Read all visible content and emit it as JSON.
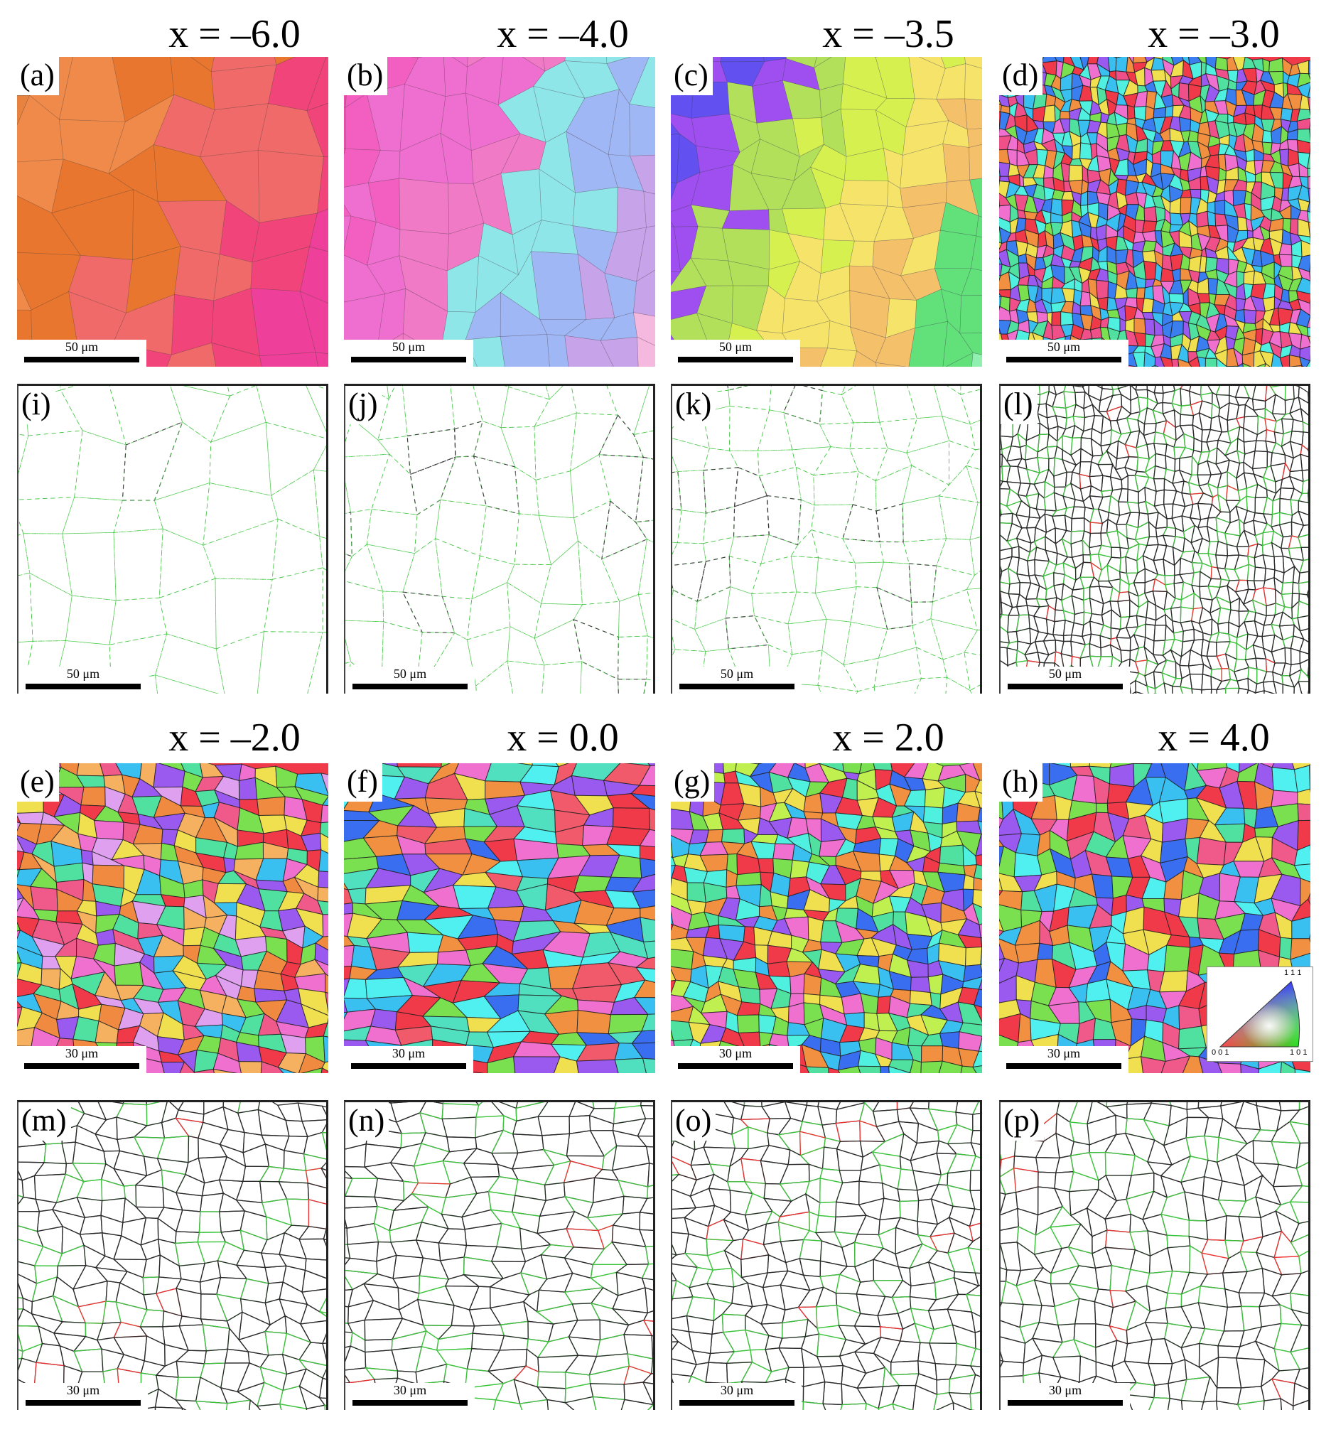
{
  "column_titles_top": [
    "x = –6.0",
    "x = –4.0",
    "x = –3.5",
    "x = –3.0"
  ],
  "column_titles_bottom": [
    "x = –2.0",
    "x = 0.0",
    "x = 2.0",
    "x = 4.0"
  ],
  "panels": [
    {
      "label": "(a)",
      "scale": "50 μm",
      "kind": "ipf",
      "palette": [
        "#e8823f",
        "#f08a4a",
        "#e9762f",
        "#f06a6a",
        "#f0447a",
        "#ee3f9a",
        "#b07ae0",
        "#9c6ff0",
        "#d8b5f0",
        "#9ef07a",
        "#f5d870"
      ]
    },
    {
      "label": "(b)",
      "scale": "50 μm",
      "kind": "ipf",
      "palette": [
        "#f04fae",
        "#f25fc0",
        "#ef6fd0",
        "#f07ac6",
        "#8ee6e8",
        "#9fb8f5",
        "#c7a3ea",
        "#f5b8de",
        "#90f0a0",
        "#e8e8f5"
      ]
    },
    {
      "label": "(c)",
      "scale": "50 μm",
      "kind": "ipf",
      "palette": [
        "#3a4ef0",
        "#6250f0",
        "#9f4ff0",
        "#b2e05a",
        "#d6f050",
        "#f5e36a",
        "#f5c06a",
        "#62e07a",
        "#8ff0b0",
        "#f0a0c8"
      ]
    },
    {
      "label": "(d)",
      "scale": "50 μm",
      "kind": "ipf",
      "palette": [
        "#f03a4a",
        "#f0508a",
        "#3ac0f0",
        "#3a7ef0",
        "#50e0a0",
        "#7ae050",
        "#f0e050",
        "#f09040",
        "#9a5af0",
        "#f070d0",
        "#50f0e0"
      ]
    },
    {
      "label": "(i)",
      "scale": "50 μm",
      "kind": "gb",
      "style": "sparse"
    },
    {
      "label": "(j)",
      "scale": "50 μm",
      "kind": "gb",
      "style": "sparse"
    },
    {
      "label": "(k)",
      "scale": "50 μm",
      "kind": "gb",
      "style": "sparse"
    },
    {
      "label": "(l)",
      "scale": "50 μm",
      "kind": "gb",
      "style": "dense"
    },
    {
      "label": "(e)",
      "scale": "30 μm",
      "kind": "ipf",
      "palette": [
        "#f03a4a",
        "#f05a8a",
        "#f08a40",
        "#f0e050",
        "#50e0a0",
        "#7ae050",
        "#3ac0f0",
        "#9a5af0",
        "#f070d0",
        "#e0a0f0",
        "#f5b060"
      ]
    },
    {
      "label": "(f)",
      "scale": "30 μm",
      "kind": "ipf",
      "palette": [
        "#f03a4a",
        "#f05a6a",
        "#3ac0f0",
        "#3a6ef0",
        "#50e0c0",
        "#7ae050",
        "#f0e050",
        "#9a5af0",
        "#f070d0",
        "#f09040",
        "#50f0f0"
      ]
    },
    {
      "label": "(g)",
      "scale": "30 μm",
      "kind": "ipf",
      "palette": [
        "#7ae050",
        "#50e0a0",
        "#3ac0f0",
        "#f03a4a",
        "#f070d0",
        "#f0e050",
        "#9a5af0",
        "#c0f050",
        "#3a6ef0",
        "#f09040",
        "#50f0e0"
      ]
    },
    {
      "label": "(h)",
      "scale": "30 μm",
      "kind": "ipf",
      "palette": [
        "#f03a4a",
        "#f05a8a",
        "#3ac0f0",
        "#3a6ef0",
        "#50e0a0",
        "#7ae050",
        "#f0e050",
        "#9a5af0",
        "#f070d0",
        "#f09040",
        "#50f0f0"
      ]
    },
    {
      "label": "(m)",
      "scale": "30 μm",
      "kind": "gb",
      "style": "dense"
    },
    {
      "label": "(n)",
      "scale": "30 μm",
      "kind": "gb",
      "style": "dense"
    },
    {
      "label": "(o)",
      "scale": "30 μm",
      "kind": "gb",
      "style": "dense"
    },
    {
      "label": "(p)",
      "scale": "30 μm",
      "kind": "gb",
      "style": "dense"
    }
  ],
  "color_key": {
    "top": "1 1 1",
    "left": "0 0 1",
    "right": "1 0 1"
  },
  "colors": {
    "high_angle": "#2b2b2b",
    "low_angle": "#3cc43c",
    "twin": "#ee3333"
  }
}
